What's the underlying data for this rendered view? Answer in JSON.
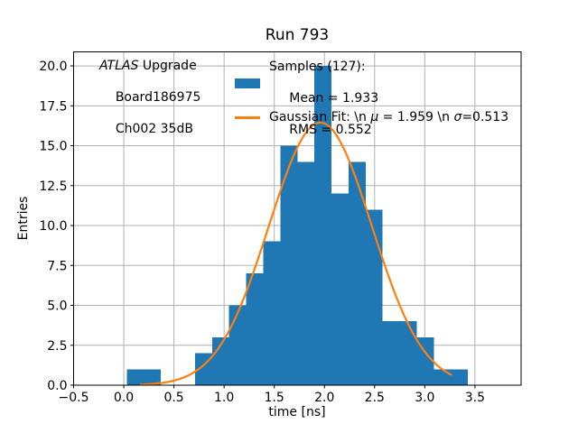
{
  "chart_data": {
    "type": "bar",
    "subtype": "histogram-with-gaussian-fit",
    "title": "Run 793",
    "xlabel": "time [ns]",
    "ylabel": "Entries",
    "total_samples": 127,
    "mean": 1.933,
    "rms": 0.552,
    "bin_start": 0.03,
    "bin_width": 0.17,
    "counts": [
      1,
      1,
      0,
      0,
      2,
      3,
      5,
      7,
      9,
      15,
      14,
      20,
      12,
      14,
      11,
      4,
      4,
      3,
      1,
      1
    ],
    "fit": {
      "mu": 1.959,
      "sigma": 0.513,
      "amplitude": 16.45,
      "x_start": 0.17,
      "x_end": 3.26,
      "color": "#ff7f0e"
    },
    "hist_color": "#1f77b4",
    "grid": true,
    "grid_color": "#b0b0b0",
    "spine_color": "#000000",
    "xlim": [
      -0.5,
      3.96
    ],
    "ylim": [
      0,
      20.88
    ],
    "x_tick_values": [
      -0.5,
      0.0,
      0.5,
      1.0,
      1.5,
      2.0,
      2.5,
      3.0,
      3.5
    ],
    "x_tick_labels": [
      "−0.5",
      "0.0",
      "0.5",
      "1.0",
      "1.5",
      "2.0",
      "2.5",
      "3.0",
      "3.5"
    ],
    "y_tick_values": [
      0.0,
      2.5,
      5.0,
      7.5,
      10.0,
      12.5,
      15.0,
      17.5,
      20.0
    ],
    "y_tick_labels": [
      "0.0",
      "2.5",
      "5.0",
      "7.5",
      "10.0",
      "12.5",
      "15.0",
      "17.5",
      "20.0"
    ],
    "legend_position": "upper center"
  },
  "annotation": {
    "line1_italic": "ATLAS",
    "line1_rest": " Upgrade",
    "line2": "Board186975",
    "line3": "Ch002 35dB"
  },
  "legend": {
    "samples_title": "Samples (127):",
    "mean_line": " Mean = 1.933",
    "rms_line": " RMS = 0.552",
    "gauss_prefix": "Gaussian Fit: \\n ",
    "gauss_mu_symbol": "μ",
    "gauss_mid": " = 1.959 \\n ",
    "gauss_sigma_symbol": "σ",
    "gauss_end": "=0.513"
  }
}
